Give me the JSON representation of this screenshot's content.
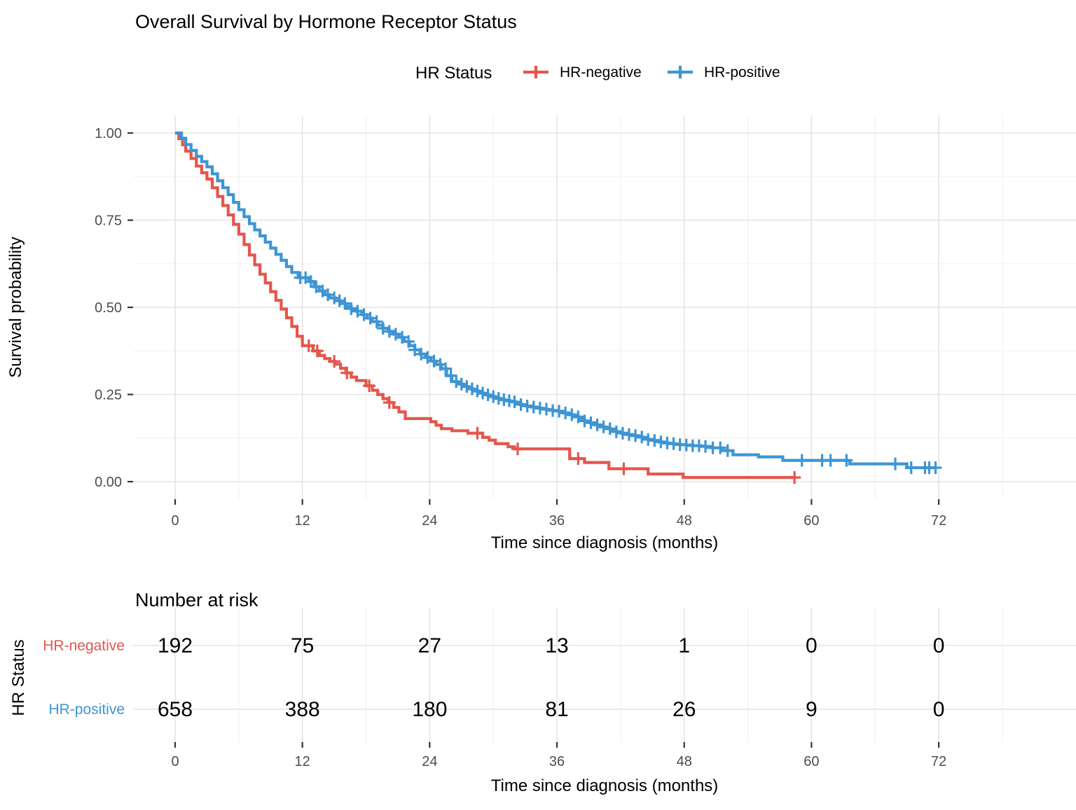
{
  "legend": {
    "title": "HR Status",
    "items": [
      {
        "label": "HR-negative",
        "color": "#E4564C"
      },
      {
        "label": "HR-positive",
        "color": "#3E95D3"
      }
    ]
  },
  "colors": {
    "hr_negative": "#E4564C",
    "hr_positive": "#3E95D3",
    "grid_major": "#E3E3E3",
    "grid_minor": "#F0F0F0",
    "tick_text": "#4d4d4d",
    "tick_mark": "#333333"
  },
  "chart_data": {
    "type": "line",
    "subtype": "kaplan-meier-step",
    "title": "Overall Survival by Hormone Receptor Status",
    "xlabel": "Time since diagnosis (months)",
    "ylabel": "Survival probability",
    "xlim": [
      0,
      72
    ],
    "ylim": [
      0,
      1
    ],
    "x_ticks": [
      0,
      12,
      24,
      36,
      48,
      60,
      72
    ],
    "x_minor_ticks": [
      6,
      18,
      30,
      42,
      54,
      66,
      78
    ],
    "y_ticks": [
      1.0,
      0.75,
      0.5,
      0.25,
      0.0
    ],
    "y_tick_labels": [
      "1.00",
      "0.75",
      "0.50",
      "0.25",
      "0.00"
    ],
    "y_minor_ticks": [
      0.875,
      0.625,
      0.375,
      0.125
    ],
    "grid": true,
    "legend_position": "top",
    "series": [
      {
        "name": "HR-negative",
        "color": "#E4564C",
        "end": 58.5,
        "steps": [
          [
            0,
            1.0
          ],
          [
            0.35,
            0.984
          ],
          [
            0.7,
            0.966
          ],
          [
            1,
            0.948
          ],
          [
            1.5,
            0.927
          ],
          [
            2,
            0.905
          ],
          [
            2.5,
            0.886
          ],
          [
            3,
            0.868
          ],
          [
            3.5,
            0.843
          ],
          [
            4,
            0.818
          ],
          [
            4.5,
            0.792
          ],
          [
            5,
            0.765
          ],
          [
            5.5,
            0.738
          ],
          [
            6,
            0.71
          ],
          [
            6.5,
            0.68
          ],
          [
            7,
            0.65
          ],
          [
            7.5,
            0.622
          ],
          [
            8,
            0.595
          ],
          [
            8.5,
            0.57
          ],
          [
            9,
            0.545
          ],
          [
            9.5,
            0.52
          ],
          [
            10,
            0.495
          ],
          [
            10.5,
            0.47
          ],
          [
            11,
            0.445
          ],
          [
            11.5,
            0.417
          ],
          [
            12,
            0.39
          ],
          [
            13,
            0.375
          ],
          [
            13.6,
            0.362
          ],
          [
            14.1,
            0.353
          ],
          [
            14.6,
            0.345
          ],
          [
            15.1,
            0.337
          ],
          [
            15.6,
            0.325
          ],
          [
            16.1,
            0.312
          ],
          [
            16.6,
            0.3
          ],
          [
            17.1,
            0.29
          ],
          [
            18,
            0.275
          ],
          [
            18.6,
            0.262
          ],
          [
            19.1,
            0.25
          ],
          [
            19.6,
            0.238
          ],
          [
            20.1,
            0.227
          ],
          [
            20.6,
            0.213
          ],
          [
            21.1,
            0.2
          ],
          [
            21.7,
            0.181
          ],
          [
            24.1,
            0.172
          ],
          [
            24.6,
            0.162
          ],
          [
            25.1,
            0.152
          ],
          [
            26.1,
            0.146
          ],
          [
            27.6,
            0.139
          ],
          [
            29,
            0.127
          ],
          [
            29.6,
            0.119
          ],
          [
            30.2,
            0.109
          ],
          [
            31.4,
            0.1
          ],
          [
            32,
            0.094
          ],
          [
            37.2,
            0.066
          ],
          [
            38.6,
            0.055
          ],
          [
            40.9,
            0.037
          ],
          [
            44.6,
            0.022
          ],
          [
            47.9,
            0.012
          ]
        ],
        "censors": [
          12.6,
          13.4,
          15.0,
          16.2,
          18.3,
          20.2,
          28.5,
          32.3,
          38.0,
          42.3,
          58.4
        ]
      },
      {
        "name": "HR-positive",
        "color": "#3E95D3",
        "end": 71.8,
        "steps": [
          [
            0,
            1.0
          ],
          [
            0.6,
            0.985
          ],
          [
            1,
            0.967
          ],
          [
            1.5,
            0.95
          ],
          [
            2,
            0.933
          ],
          [
            2.5,
            0.918
          ],
          [
            3,
            0.903
          ],
          [
            3.5,
            0.883
          ],
          [
            4,
            0.863
          ],
          [
            4.5,
            0.843
          ],
          [
            5,
            0.823
          ],
          [
            5.5,
            0.801
          ],
          [
            6,
            0.78
          ],
          [
            6.5,
            0.76
          ],
          [
            7,
            0.74
          ],
          [
            7.5,
            0.722
          ],
          [
            8,
            0.705
          ],
          [
            8.5,
            0.687
          ],
          [
            9,
            0.67
          ],
          [
            9.5,
            0.652
          ],
          [
            10,
            0.635
          ],
          [
            10.5,
            0.617
          ],
          [
            11,
            0.6
          ],
          [
            11.6,
            0.585
          ],
          [
            12.6,
            0.574
          ],
          [
            13.1,
            0.559
          ],
          [
            13.6,
            0.547
          ],
          [
            14.1,
            0.536
          ],
          [
            14.6,
            0.527
          ],
          [
            15.1,
            0.519
          ],
          [
            15.6,
            0.511
          ],
          [
            16.1,
            0.503
          ],
          [
            16.6,
            0.496
          ],
          [
            17.1,
            0.489
          ],
          [
            17.6,
            0.479
          ],
          [
            18.1,
            0.469
          ],
          [
            18.6,
            0.459
          ],
          [
            19.1,
            0.449
          ],
          [
            19.6,
            0.44
          ],
          [
            20.1,
            0.431
          ],
          [
            20.6,
            0.423
          ],
          [
            21.1,
            0.414
          ],
          [
            21.6,
            0.402
          ],
          [
            22.1,
            0.39
          ],
          [
            22.6,
            0.378
          ],
          [
            23.1,
            0.366
          ],
          [
            23.6,
            0.356
          ],
          [
            24.1,
            0.346
          ],
          [
            24.6,
            0.336
          ],
          [
            25.1,
            0.324
          ],
          [
            25.6,
            0.304
          ],
          [
            26.1,
            0.287
          ],
          [
            26.6,
            0.28
          ],
          [
            27.1,
            0.273
          ],
          [
            27.6,
            0.266
          ],
          [
            28.1,
            0.26
          ],
          [
            28.6,
            0.254
          ],
          [
            29.1,
            0.249
          ],
          [
            29.6,
            0.244
          ],
          [
            30.1,
            0.239
          ],
          [
            30.6,
            0.235
          ],
          [
            31.1,
            0.232
          ],
          [
            31.6,
            0.229
          ],
          [
            32.1,
            0.226
          ],
          [
            32.6,
            0.221
          ],
          [
            33.1,
            0.217
          ],
          [
            33.6,
            0.214
          ],
          [
            34.1,
            0.211
          ],
          [
            34.6,
            0.208
          ],
          [
            35.1,
            0.206
          ],
          [
            35.6,
            0.204
          ],
          [
            36.1,
            0.202
          ],
          [
            36.6,
            0.197
          ],
          [
            37.1,
            0.192
          ],
          [
            37.6,
            0.186
          ],
          [
            38.1,
            0.18
          ],
          [
            38.6,
            0.174
          ],
          [
            39.1,
            0.169
          ],
          [
            39.6,
            0.163
          ],
          [
            40.1,
            0.157
          ],
          [
            40.6,
            0.152
          ],
          [
            41.1,
            0.147
          ],
          [
            41.6,
            0.143
          ],
          [
            42.1,
            0.139
          ],
          [
            42.6,
            0.135
          ],
          [
            43.1,
            0.132
          ],
          [
            43.6,
            0.128
          ],
          [
            44.1,
            0.124
          ],
          [
            44.6,
            0.121
          ],
          [
            45.1,
            0.118
          ],
          [
            45.6,
            0.114
          ],
          [
            46.1,
            0.111
          ],
          [
            46.6,
            0.109
          ],
          [
            47.1,
            0.107
          ],
          [
            47.6,
            0.106
          ],
          [
            48.2,
            0.105
          ],
          [
            48.8,
            0.103
          ],
          [
            49.6,
            0.101
          ],
          [
            50.6,
            0.097
          ],
          [
            51.6,
            0.089
          ],
          [
            52.6,
            0.077
          ],
          [
            55,
            0.071
          ],
          [
            57.3,
            0.061
          ],
          [
            63.6,
            0.051
          ],
          [
            69,
            0.04
          ]
        ],
        "censors": [
          11.8,
          12.3,
          12.8,
          13.3,
          13.9,
          14.4,
          15.0,
          15.5,
          16.0,
          16.6,
          17.2,
          17.8,
          18.4,
          19.0,
          19.6,
          20.2,
          20.8,
          21.4,
          22.0,
          22.6,
          23.2,
          23.8,
          24.4,
          25.0,
          25.5,
          26.0,
          26.5,
          27.0,
          27.5,
          28.0,
          28.5,
          29.0,
          29.5,
          30.0,
          30.5,
          31.0,
          31.5,
          32.0,
          32.6,
          33.2,
          33.8,
          34.4,
          35.0,
          35.6,
          36.2,
          36.8,
          37.4,
          38.0,
          38.6,
          39.2,
          39.8,
          40.4,
          41.0,
          41.6,
          42.2,
          42.8,
          43.4,
          44.0,
          44.6,
          45.2,
          45.8,
          46.4,
          47.0,
          47.6,
          48.2,
          48.8,
          49.4,
          50.0,
          50.7,
          51.4,
          52.1,
          59.1,
          61.0,
          61.8,
          63.3,
          67.9,
          69.4,
          70.7,
          71.1,
          71.7
        ]
      }
    ]
  },
  "risk_table": {
    "title": "Number at risk",
    "ylabel": "HR Status",
    "xlabel": "Time since diagnosis (months)",
    "x_ticks": [
      0,
      12,
      24,
      36,
      48,
      60,
      72
    ],
    "rows": [
      {
        "label": "HR-negative",
        "color": "#E4564C",
        "values": [
          192,
          75,
          27,
          13,
          1,
          0,
          0
        ]
      },
      {
        "label": "HR-positive",
        "color": "#3E95D3",
        "values": [
          658,
          388,
          180,
          81,
          26,
          9,
          0
        ]
      }
    ]
  }
}
